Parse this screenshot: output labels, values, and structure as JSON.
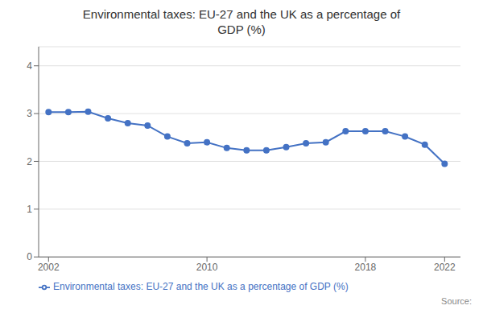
{
  "chart_data": {
    "type": "line",
    "title": "Environmental taxes: EU-27 and the UK as a percentage of\nGDP (%)",
    "x": [
      2002,
      2003,
      2004,
      2005,
      2006,
      2007,
      2008,
      2009,
      2010,
      2011,
      2012,
      2013,
      2014,
      2015,
      2016,
      2017,
      2018,
      2019,
      2020,
      2021,
      2022
    ],
    "series": [
      {
        "name": "Environmental taxes: EU-27 and the UK as a percentage of GDP (%)",
        "color": "#4472c4",
        "marker": "circle",
        "values": [
          3.03,
          3.03,
          3.04,
          2.9,
          2.8,
          2.75,
          2.52,
          2.38,
          2.4,
          2.28,
          2.23,
          2.23,
          2.3,
          2.38,
          2.4,
          2.63,
          2.63,
          2.63,
          2.52,
          2.35,
          1.95
        ]
      }
    ],
    "xlim": [
      2001.5,
      2022.8
    ],
    "xticks": [
      2002,
      2010,
      2018,
      2022
    ],
    "ylim": [
      0,
      4.4
    ],
    "yticks": [
      0,
      1,
      2,
      3,
      4
    ],
    "grid": true,
    "legend": "lower left",
    "annotations": [
      "Source:"
    ]
  }
}
